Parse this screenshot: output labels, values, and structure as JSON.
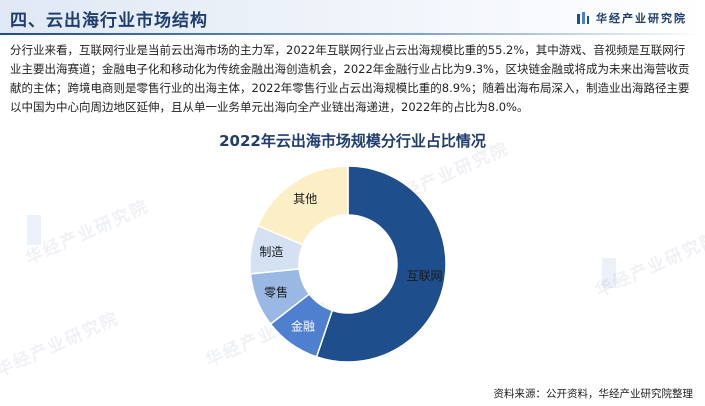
{
  "header": {
    "section_title": "四、云出海行业市场结构",
    "brand": "华经产业研究院"
  },
  "body_text": "分行业来看，互联网行业是当前云出海市场的主力军，2022年互联网行业占云出海规模比重的55.2%，其中游戏、音视频是互联网行业主要出海赛道；金融电子化和移动化为传统金融出海创造机会，2022年金融行业占比为9.3%，区块链金融或将成为未来出海营收贡献的主体；跨境电商则是零售行业的出海主体，2022年零售行业占云出海规模比重的8.9%；随着出海布局深入，制造业出海路径主要以中国为中心向周边地区延伸，且从单一业务单元出海向全产业链出海递进，2022年的占比为8.0%。",
  "watermark_text": "华经产业研究院",
  "chart_data": {
    "type": "pie",
    "title": "2022年云出海市场规模分行业占比情况",
    "labels": [
      "互联网",
      "金融",
      "零售",
      "制造",
      "其他"
    ],
    "values": [
      55.2,
      9.3,
      8.9,
      8.0,
      18.6
    ],
    "colors": [
      "#1f4e8c",
      "#4f7fcf",
      "#9ab8e4",
      "#d4e1f3",
      "#fcefc5"
    ],
    "label_colors": [
      "#1a1a1a",
      "#ffffff",
      "#1a1a1a",
      "#1a1a1a",
      "#1a1a1a"
    ]
  },
  "footer": {
    "source": "资料来源：公开资料，华经产业研究院整理"
  }
}
